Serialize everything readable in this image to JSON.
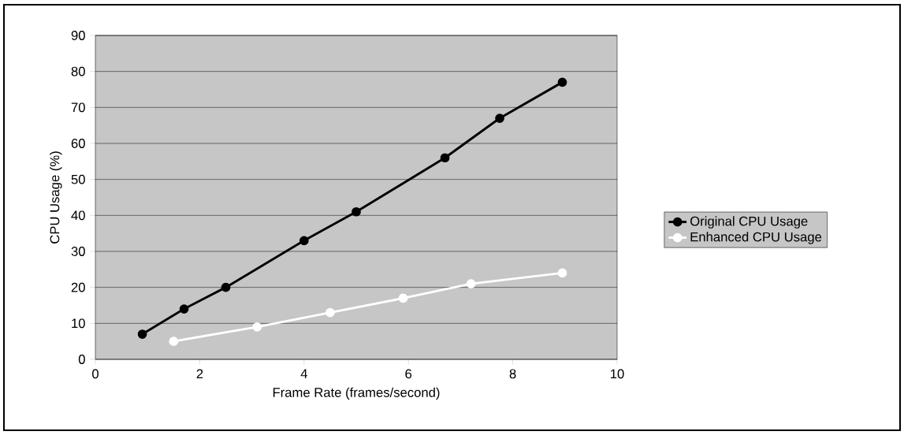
{
  "chart_data": {
    "type": "line",
    "xlabel": "Frame Rate (frames/second)",
    "ylabel": "CPU Usage (%)",
    "xlim": [
      0,
      10
    ],
    "xticks": [
      0,
      2,
      4,
      6,
      8,
      10
    ],
    "ylim": [
      0,
      90
    ],
    "yticks": [
      0,
      10,
      20,
      30,
      40,
      50,
      60,
      70,
      80,
      90
    ],
    "grid": "y",
    "legend": "right",
    "marker": "circle",
    "line_style": "solid",
    "series": [
      {
        "name": "Original CPU Usage",
        "color": "#000000",
        "x": [
          0.9,
          1.7,
          2.5,
          4.0,
          5.0,
          6.7,
          7.75,
          8.95
        ],
        "values": [
          7,
          14,
          20,
          33,
          41,
          56,
          67,
          77
        ]
      },
      {
        "name": "Enhanced CPU Usage",
        "color": "#ffffff",
        "x": [
          1.5,
          3.1,
          4.5,
          5.9,
          7.2,
          8.95
        ],
        "values": [
          5,
          9,
          13,
          17,
          21,
          24
        ]
      }
    ]
  }
}
